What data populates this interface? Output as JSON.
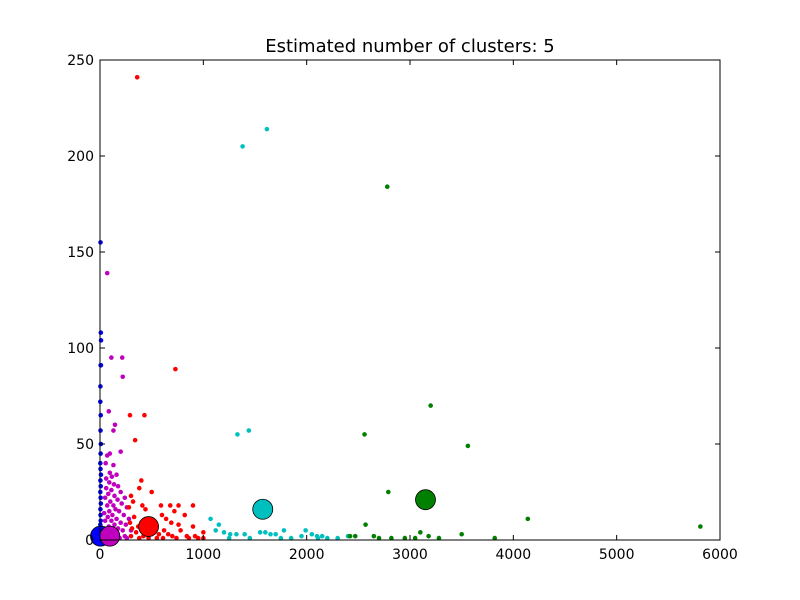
{
  "chart_data": {
    "type": "scatter",
    "title": "Estimated number of clusters: 5",
    "xlabel": "",
    "ylabel": "",
    "xlim": [
      0,
      6000
    ],
    "ylim": [
      0,
      250
    ],
    "xticks": [
      0,
      1000,
      2000,
      3000,
      4000,
      5000,
      6000
    ],
    "yticks": [
      0,
      50,
      100,
      150,
      200,
      250
    ],
    "grid": false,
    "legend": "none",
    "series": [
      {
        "color": "#0000ff",
        "points": [
          [
            5,
            155
          ],
          [
            8,
            108
          ],
          [
            10,
            104
          ],
          [
            6,
            91
          ],
          [
            9,
            91
          ],
          [
            4,
            80
          ],
          [
            3,
            72
          ],
          [
            7,
            65
          ],
          [
            5,
            57
          ],
          [
            8,
            50
          ],
          [
            6,
            45
          ],
          [
            3,
            40
          ],
          [
            5,
            37
          ],
          [
            9,
            34
          ],
          [
            4,
            31
          ],
          [
            7,
            28
          ],
          [
            3,
            25
          ],
          [
            6,
            22
          ],
          [
            8,
            19
          ],
          [
            4,
            16
          ],
          [
            5,
            13
          ],
          [
            7,
            10
          ],
          [
            3,
            8
          ],
          [
            6,
            5
          ],
          [
            4,
            3
          ],
          [
            8,
            2
          ],
          [
            5,
            1
          ],
          [
            10,
            4
          ],
          [
            6,
            7
          ]
        ],
        "center": [
          5,
          2
        ]
      },
      {
        "color": "#bf00bf",
        "points": [
          [
            70,
            139
          ],
          [
            110,
            95
          ],
          [
            215,
            95
          ],
          [
            220,
            85
          ],
          [
            85,
            67
          ],
          [
            145,
            60
          ],
          [
            130,
            57
          ],
          [
            200,
            46
          ],
          [
            95,
            45
          ],
          [
            70,
            44
          ],
          [
            55,
            40
          ],
          [
            130,
            39
          ],
          [
            95,
            35
          ],
          [
            160,
            34
          ],
          [
            115,
            33
          ],
          [
            60,
            32
          ],
          [
            90,
            30
          ],
          [
            135,
            29
          ],
          [
            175,
            28
          ],
          [
            60,
            27
          ],
          [
            110,
            26
          ],
          [
            200,
            25
          ],
          [
            80,
            24
          ],
          [
            140,
            23
          ],
          [
            240,
            22
          ],
          [
            50,
            22
          ],
          [
            170,
            21
          ],
          [
            100,
            20
          ],
          [
            210,
            19
          ],
          [
            130,
            18
          ],
          [
            70,
            18
          ],
          [
            260,
            17
          ],
          [
            150,
            16
          ],
          [
            90,
            15
          ],
          [
            185,
            15
          ],
          [
            40,
            14
          ],
          [
            120,
            13
          ],
          [
            230,
            13
          ],
          [
            75,
            12
          ],
          [
            160,
            11
          ],
          [
            280,
            11
          ],
          [
            50,
            10
          ],
          [
            110,
            10
          ],
          [
            200,
            9
          ],
          [
            140,
            8
          ],
          [
            250,
            8
          ],
          [
            85,
            7
          ],
          [
            175,
            6
          ],
          [
            40,
            6
          ],
          [
            120,
            5
          ],
          [
            220,
            5
          ],
          [
            300,
            5
          ],
          [
            70,
            4
          ],
          [
            160,
            3
          ],
          [
            100,
            3
          ],
          [
            240,
            2
          ],
          [
            50,
            2
          ],
          [
            130,
            2
          ],
          [
            190,
            1
          ],
          [
            80,
            1
          ],
          [
            260,
            1
          ],
          [
            150,
            1
          ]
        ],
        "center": [
          95,
          2
        ]
      },
      {
        "color": "#ff0000",
        "points": [
          [
            360,
            241
          ],
          [
            730,
            89
          ],
          [
            290,
            65
          ],
          [
            430,
            65
          ],
          [
            340,
            52
          ],
          [
            400,
            31
          ],
          [
            380,
            27
          ],
          [
            500,
            25
          ],
          [
            300,
            23
          ],
          [
            320,
            20
          ],
          [
            410,
            18
          ],
          [
            590,
            18
          ],
          [
            680,
            18
          ],
          [
            760,
            18
          ],
          [
            900,
            18
          ],
          [
            280,
            17
          ],
          [
            440,
            16
          ],
          [
            720,
            15
          ],
          [
            600,
            13
          ],
          [
            820,
            13
          ],
          [
            330,
            12
          ],
          [
            480,
            11
          ],
          [
            640,
            11
          ],
          [
            690,
            9
          ],
          [
            290,
            9
          ],
          [
            760,
            8
          ],
          [
            420,
            8
          ],
          [
            370,
            7
          ],
          [
            540,
            7
          ],
          [
            900,
            7
          ],
          [
            310,
            6
          ],
          [
            460,
            5
          ],
          [
            620,
            5
          ],
          [
            780,
            5
          ],
          [
            1000,
            4
          ],
          [
            350,
            4
          ],
          [
            500,
            3
          ],
          [
            570,
            3
          ],
          [
            660,
            3
          ],
          [
            700,
            2
          ],
          [
            840,
            2
          ],
          [
            920,
            2
          ],
          [
            300,
            2
          ],
          [
            420,
            2
          ],
          [
            550,
            1
          ],
          [
            610,
            1
          ],
          [
            740,
            1
          ],
          [
            860,
            1
          ],
          [
            950,
            1
          ],
          [
            1000,
            1
          ],
          [
            380,
            1
          ],
          [
            470,
            1
          ]
        ],
        "center": [
          470,
          7
        ]
      },
      {
        "color": "#00bfbf",
        "points": [
          [
            1615,
            214
          ],
          [
            1380,
            205
          ],
          [
            1440,
            57
          ],
          [
            1330,
            55
          ],
          [
            1070,
            11
          ],
          [
            1150,
            8
          ],
          [
            1120,
            5
          ],
          [
            1200,
            4
          ],
          [
            1260,
            3
          ],
          [
            1320,
            3
          ],
          [
            1400,
            3
          ],
          [
            1550,
            4
          ],
          [
            1600,
            4
          ],
          [
            1650,
            3
          ],
          [
            1700,
            3
          ],
          [
            1780,
            5
          ],
          [
            1990,
            5
          ],
          [
            2050,
            3
          ],
          [
            2100,
            2
          ],
          [
            2150,
            2
          ],
          [
            2200,
            1
          ],
          [
            2300,
            1
          ],
          [
            2400,
            2
          ],
          [
            1250,
            1
          ],
          [
            1450,
            1
          ],
          [
            1750,
            1
          ],
          [
            1850,
            1
          ],
          [
            1950,
            2
          ],
          [
            2110,
            1
          ]
        ],
        "center": [
          1575,
          16
        ]
      },
      {
        "color": "#007f00",
        "points": [
          [
            2780,
            184
          ],
          [
            3200,
            70
          ],
          [
            3560,
            49
          ],
          [
            2560,
            55
          ],
          [
            2790,
            25
          ],
          [
            4140,
            11
          ],
          [
            5810,
            7
          ],
          [
            2570,
            8
          ],
          [
            3100,
            4
          ],
          [
            3500,
            3
          ],
          [
            2650,
            2
          ],
          [
            2420,
            2
          ],
          [
            2470,
            2
          ],
          [
            3180,
            2
          ],
          [
            2820,
            1
          ],
          [
            2950,
            1
          ],
          [
            3050,
            1
          ],
          [
            3820,
            1
          ],
          [
            2700,
            1
          ],
          [
            3280,
            1
          ]
        ],
        "center": [
          3150,
          21
        ]
      }
    ]
  }
}
